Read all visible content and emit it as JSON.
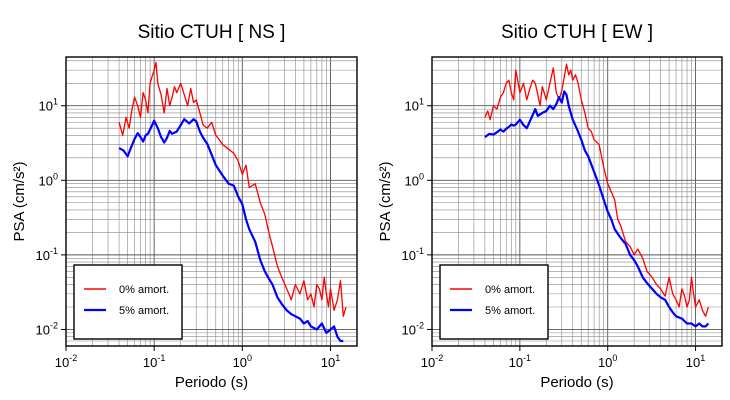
{
  "chart_data": [
    {
      "type": "line",
      "title": "Sitio CTUH [ NS ]",
      "xlabel": "Periodo (s)",
      "ylabel": "PSA (cm/s²)",
      "xscale": "log",
      "yscale": "log",
      "xlim": [
        0.01,
        20
      ],
      "ylim": [
        0.006,
        45
      ],
      "grid": true,
      "legend": "bottom-left",
      "xticks": [
        {
          "exp": "-2"
        },
        {
          "exp": "-1"
        },
        {
          "exp": "0"
        },
        {
          "exp": "1"
        }
      ],
      "yticks": [
        {
          "exp": "-2"
        },
        {
          "exp": "-1"
        },
        {
          "exp": "0"
        },
        {
          "exp": "1"
        }
      ],
      "series": [
        {
          "name": "0% amort.",
          "color": "#ff0000",
          "x": [
            0.04,
            0.044,
            0.048,
            0.052,
            0.056,
            0.06,
            0.065,
            0.07,
            0.075,
            0.08,
            0.085,
            0.09,
            0.095,
            0.1,
            0.105,
            0.11,
            0.12,
            0.13,
            0.14,
            0.15,
            0.16,
            0.17,
            0.18,
            0.2,
            0.22,
            0.24,
            0.26,
            0.28,
            0.3,
            0.33,
            0.36,
            0.4,
            0.45,
            0.5,
            0.55,
            0.6,
            0.7,
            0.8,
            0.9,
            1.0,
            1.1,
            1.2,
            1.4,
            1.6,
            1.8,
            2.0,
            2.2,
            2.5,
            2.8,
            3.2,
            3.6,
            4.0,
            4.5,
            5.0,
            5.5,
            6.0,
            6.5,
            7.0,
            7.5,
            8.0,
            8.5,
            9.0,
            9.5,
            10.0,
            11.0,
            12.0,
            13.0,
            14.0,
            15.0
          ],
          "y": [
            6,
            4,
            7,
            5,
            9,
            13,
            10,
            7,
            15,
            12,
            8,
            20,
            25,
            30,
            38,
            20,
            14,
            8,
            17,
            10,
            13,
            18,
            15,
            20,
            14,
            10,
            17,
            11,
            12,
            8,
            5.5,
            5,
            6,
            4,
            3.5,
            3,
            2.6,
            2.3,
            1.8,
            1.2,
            1.6,
            0.8,
            0.9,
            0.5,
            0.35,
            0.2,
            0.13,
            0.07,
            0.05,
            0.035,
            0.025,
            0.04,
            0.03,
            0.045,
            0.025,
            0.03,
            0.02,
            0.04,
            0.035,
            0.025,
            0.05,
            0.03,
            0.02,
            0.035,
            0.018,
            0.025,
            0.045,
            0.015,
            0.02
          ]
        },
        {
          "name": "5% amort.",
          "color": "#0000ff",
          "x": [
            0.04,
            0.045,
            0.05,
            0.055,
            0.06,
            0.065,
            0.07,
            0.075,
            0.08,
            0.085,
            0.09,
            0.1,
            0.11,
            0.12,
            0.13,
            0.14,
            0.15,
            0.16,
            0.18,
            0.2,
            0.22,
            0.25,
            0.28,
            0.3,
            0.33,
            0.36,
            0.4,
            0.45,
            0.5,
            0.6,
            0.7,
            0.8,
            0.9,
            1.0,
            1.1,
            1.2,
            1.4,
            1.6,
            1.8,
            2.0,
            2.2,
            2.5,
            2.8,
            3.2,
            3.6,
            4.0,
            4.5,
            5.0,
            5.5,
            6.0,
            7.0,
            8.0,
            9.0,
            10.0,
            11.0,
            12.0,
            13.0,
            14.0
          ],
          "y": [
            2.7,
            2.5,
            2.1,
            2.8,
            3.6,
            4.3,
            3.8,
            3.3,
            4,
            4.2,
            4.8,
            6.3,
            5,
            3.8,
            3.2,
            3.7,
            4.6,
            4.2,
            4.5,
            5.5,
            6.6,
            5.8,
            6.6,
            6.2,
            4.5,
            3.7,
            3.1,
            2.2,
            1.6,
            1.15,
            0.9,
            0.85,
            0.6,
            0.48,
            0.3,
            0.22,
            0.15,
            0.085,
            0.06,
            0.048,
            0.04,
            0.027,
            0.022,
            0.018,
            0.016,
            0.015,
            0.014,
            0.012,
            0.013,
            0.011,
            0.01,
            0.012,
            0.009,
            0.01,
            0.011,
            0.008,
            0.007,
            0.007
          ]
        }
      ]
    },
    {
      "type": "line",
      "title": "Sitio CTUH [ EW ]",
      "xlabel": "Periodo (s)",
      "ylabel": "PSA (cm/s²)",
      "xscale": "log",
      "yscale": "log",
      "xlim": [
        0.01,
        20
      ],
      "ylim": [
        0.006,
        45
      ],
      "grid": true,
      "legend": "bottom-left",
      "xticks": [
        {
          "exp": "-2"
        },
        {
          "exp": "-1"
        },
        {
          "exp": "0"
        },
        {
          "exp": "1"
        }
      ],
      "yticks": [
        {
          "exp": "-2"
        },
        {
          "exp": "-1"
        },
        {
          "exp": "0"
        },
        {
          "exp": "1"
        }
      ],
      "series": [
        {
          "name": "0% amort.",
          "color": "#ff0000",
          "x": [
            0.04,
            0.043,
            0.046,
            0.05,
            0.055,
            0.06,
            0.065,
            0.07,
            0.075,
            0.08,
            0.085,
            0.09,
            0.1,
            0.11,
            0.12,
            0.13,
            0.14,
            0.15,
            0.16,
            0.17,
            0.18,
            0.2,
            0.22,
            0.24,
            0.26,
            0.28,
            0.3,
            0.32,
            0.34,
            0.36,
            0.38,
            0.4,
            0.43,
            0.46,
            0.5,
            0.55,
            0.6,
            0.65,
            0.7,
            0.8,
            0.9,
            1.0,
            1.1,
            1.2,
            1.3,
            1.4,
            1.6,
            1.8,
            2.0,
            2.2,
            2.5,
            2.8,
            3.2,
            3.6,
            4.0,
            4.5,
            5.0,
            5.5,
            6.0,
            6.5,
            7.0,
            7.5,
            8.0,
            8.5,
            9.0,
            9.5,
            10.0,
            11.0,
            12.0,
            13.0,
            14.0
          ],
          "y": [
            7,
            8.5,
            6.5,
            10,
            9,
            13,
            15,
            20,
            22,
            15,
            12,
            30,
            15,
            20,
            12,
            17,
            22,
            20,
            14,
            10,
            18,
            12,
            20,
            32,
            15,
            12,
            16,
            24,
            36,
            26,
            30,
            22,
            26,
            20,
            12,
            8,
            5,
            4.5,
            3.5,
            3,
            1.5,
            0.9,
            0.7,
            0.55,
            0.3,
            0.25,
            0.15,
            0.13,
            0.1,
            0.12,
            0.09,
            0.06,
            0.05,
            0.04,
            0.035,
            0.028,
            0.05,
            0.03,
            0.025,
            0.02,
            0.035,
            0.028,
            0.02,
            0.025,
            0.05,
            0.03,
            0.02,
            0.025,
            0.018,
            0.015,
            0.02
          ]
        },
        {
          "name": "5% amort.",
          "color": "#0000ff",
          "x": [
            0.04,
            0.045,
            0.05,
            0.055,
            0.06,
            0.065,
            0.07,
            0.075,
            0.08,
            0.085,
            0.09,
            0.1,
            0.11,
            0.12,
            0.13,
            0.14,
            0.15,
            0.16,
            0.18,
            0.2,
            0.22,
            0.24,
            0.26,
            0.28,
            0.3,
            0.32,
            0.34,
            0.36,
            0.4,
            0.45,
            0.5,
            0.55,
            0.6,
            0.7,
            0.8,
            0.9,
            1.0,
            1.1,
            1.2,
            1.4,
            1.6,
            1.8,
            2.0,
            2.2,
            2.5,
            2.8,
            3.2,
            3.6,
            4.0,
            4.5,
            5.0,
            5.5,
            6.0,
            7.0,
            8.0,
            9.0,
            10.0,
            11.0,
            12.0,
            13.0,
            14.0
          ],
          "y": [
            3.8,
            4.2,
            4.1,
            4.4,
            4.8,
            4.5,
            4.9,
            5.2,
            5.6,
            5.4,
            5.6,
            6.5,
            5.5,
            5,
            6.2,
            7.5,
            9,
            7.3,
            8,
            8.5,
            10,
            9,
            10.5,
            13,
            11,
            15.5,
            14,
            10,
            6.5,
            4.8,
            3.5,
            2.5,
            2.1,
            1.3,
            0.85,
            0.55,
            0.38,
            0.3,
            0.22,
            0.17,
            0.14,
            0.1,
            0.085,
            0.07,
            0.05,
            0.042,
            0.035,
            0.03,
            0.027,
            0.025,
            0.02,
            0.017,
            0.015,
            0.014,
            0.012,
            0.012,
            0.011,
            0.012,
            0.011,
            0.011,
            0.012
          ]
        }
      ]
    }
  ]
}
